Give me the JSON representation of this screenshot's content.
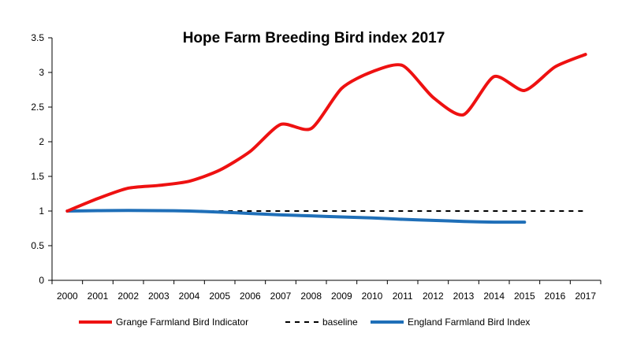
{
  "chart_data": {
    "type": "line",
    "title": "Hope Farm Breeding Bird index 2017",
    "xlabel": "",
    "ylabel": "",
    "ylim": [
      0,
      3.5
    ],
    "yticks": [
      "0",
      "0.5",
      "1",
      "1.5",
      "2",
      "2.5",
      "3",
      "3.5"
    ],
    "ytick_values": [
      0,
      0.5,
      1,
      1.5,
      2,
      2.5,
      3,
      3.5
    ],
    "categories": [
      "2000",
      "2001",
      "2002",
      "2003",
      "2004",
      "2005",
      "2006",
      "2007",
      "2008",
      "2009",
      "2010",
      "2011",
      "2012",
      "2013",
      "2014",
      "2015",
      "2016",
      "2017"
    ],
    "grid": false,
    "legend_position": "bottom",
    "series": [
      {
        "name": "Grange Farmland Bird Indicator",
        "color": "#ee1111",
        "style": "solid",
        "values": [
          1.0,
          1.18,
          1.33,
          1.37,
          1.43,
          1.59,
          1.86,
          2.25,
          2.19,
          2.77,
          3.01,
          3.1,
          2.64,
          2.39,
          2.94,
          2.74,
          3.08,
          3.26
        ]
      },
      {
        "name": "baseline",
        "color": "#000000",
        "style": "dashed",
        "values": [
          1,
          1,
          1,
          1,
          1,
          1,
          1,
          1,
          1,
          1,
          1,
          1,
          1,
          1,
          1,
          1,
          1,
          1
        ]
      },
      {
        "name": "England Farmland Bird Index",
        "color": "#1f6fb8",
        "style": "solid",
        "values": [
          1.0,
          1.005,
          1.008,
          1.006,
          1.0,
          0.985,
          0.965,
          0.945,
          0.93,
          0.915,
          0.9,
          0.88,
          0.865,
          0.85,
          0.84,
          0.84,
          null,
          null
        ]
      }
    ]
  }
}
